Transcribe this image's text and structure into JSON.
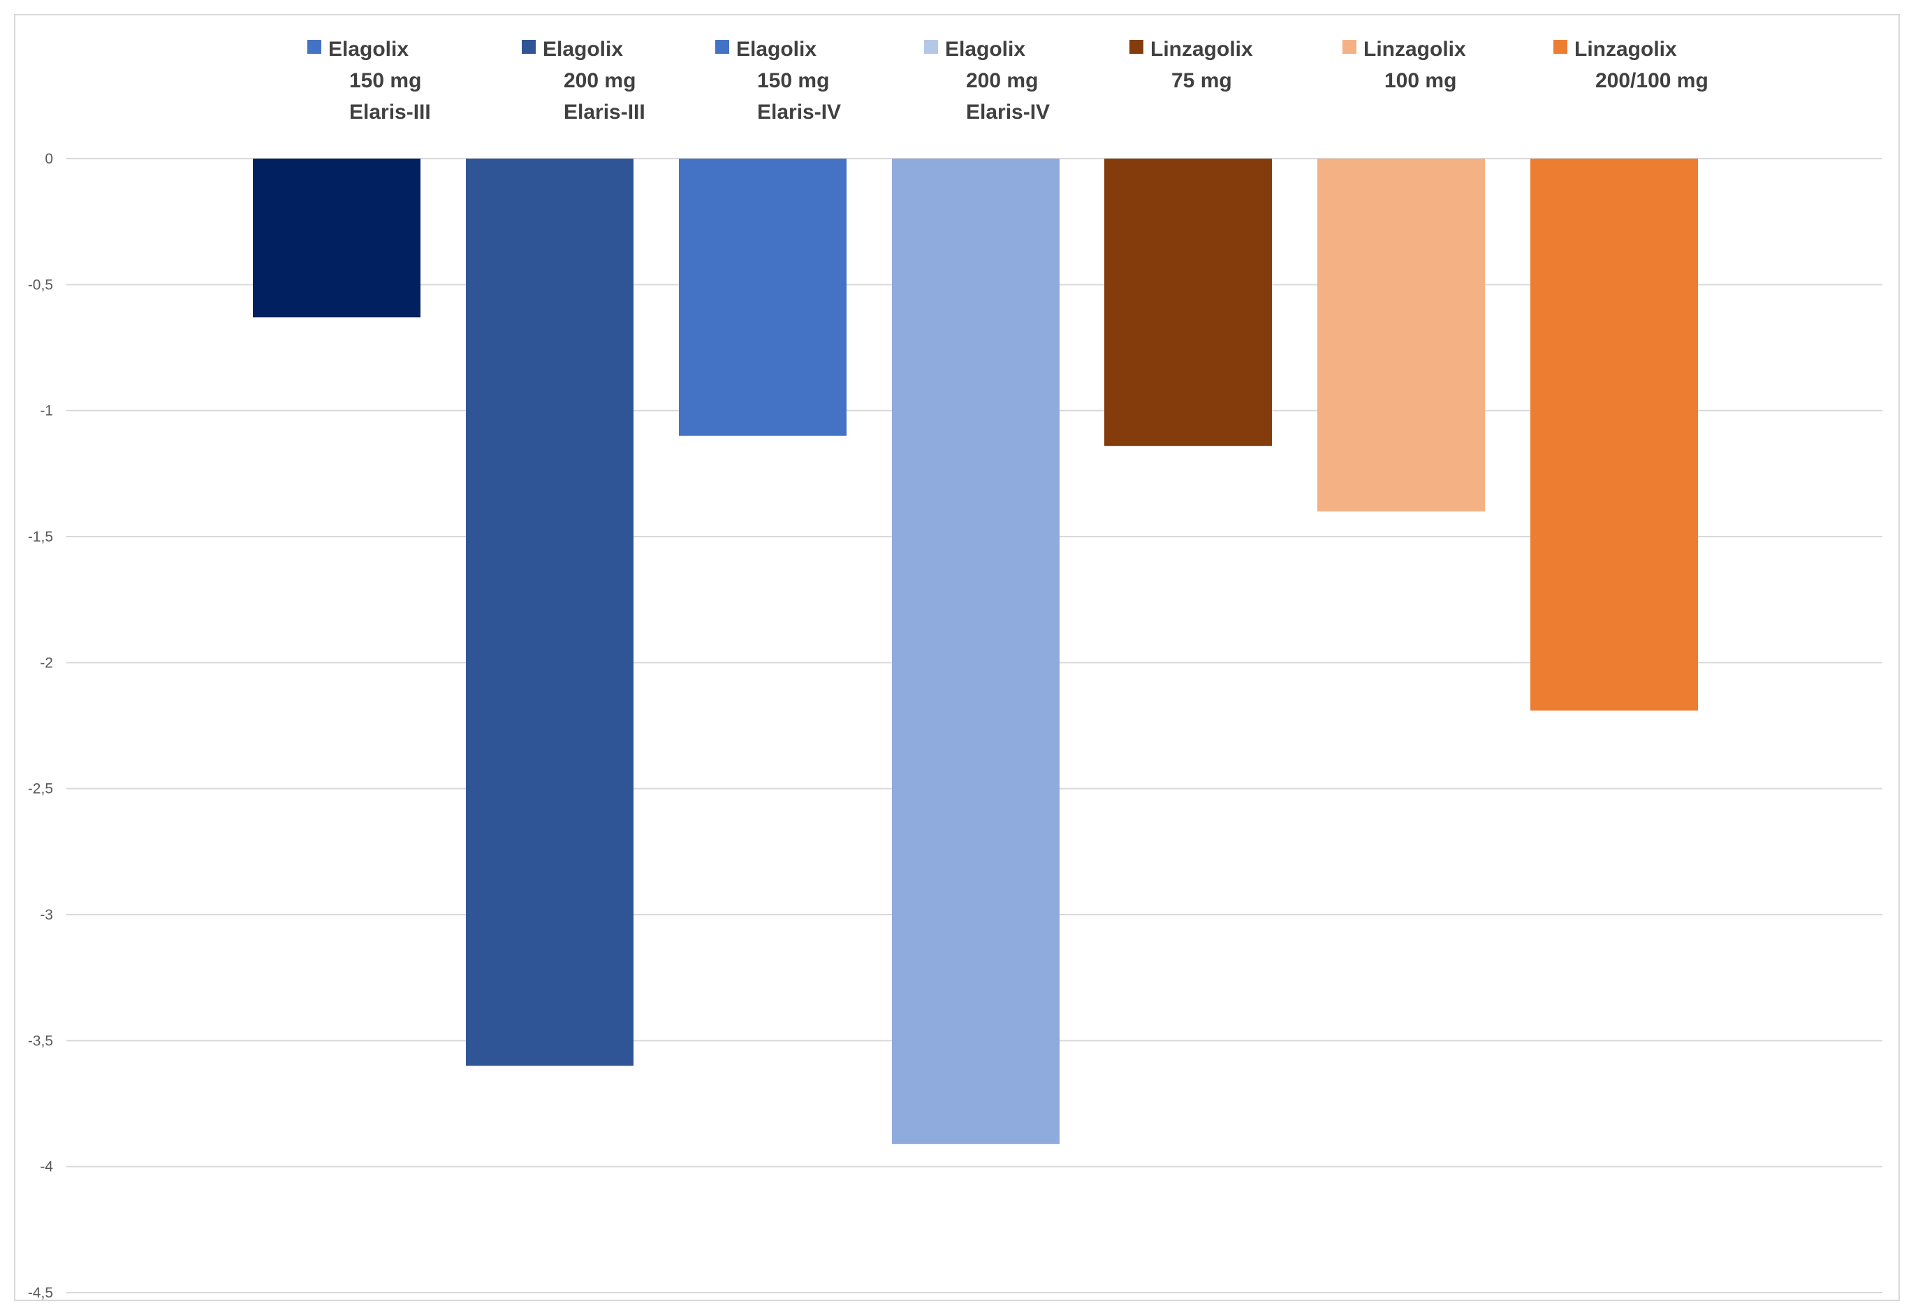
{
  "chart_data": {
    "type": "bar",
    "title": "",
    "xlabel": "",
    "ylabel": "",
    "ylim": [
      -4.5,
      0
    ],
    "yticks": [
      0,
      -0.5,
      -1,
      -1.5,
      -2,
      -2.5,
      -3,
      -3.5,
      -4,
      -4.5
    ],
    "ytick_labels": [
      "0",
      "-0,5",
      "-1",
      "-1,5",
      "-2",
      "-2,5",
      "-3",
      "-3,5",
      "-4",
      "-4,5"
    ],
    "grid": true,
    "legend_position": "top",
    "categories": [
      {
        "lines": [
          "Elagolix",
          "150 mg",
          "Elaris-III"
        ],
        "bar_color": "#002060",
        "legend_color": "#4472c4"
      },
      {
        "lines": [
          "Elagolix",
          "200 mg",
          "Elaris-III"
        ],
        "bar_color": "#2f5597",
        "legend_color": "#2f5597"
      },
      {
        "lines": [
          "Elagolix",
          "150 mg",
          "Elaris-IV"
        ],
        "bar_color": "#4472c4",
        "legend_color": "#4472c4"
      },
      {
        "lines": [
          "Elagolix",
          "200 mg",
          "Elaris-IV"
        ],
        "bar_color": "#8faadc",
        "legend_color": "#b4c7e7"
      },
      {
        "lines": [
          "Linzagolix",
          "75 mg"
        ],
        "bar_color": "#843c0c",
        "legend_color": "#843c0c"
      },
      {
        "lines": [
          "Linzagolix",
          "100 mg"
        ],
        "bar_color": "#f4b183",
        "legend_color": "#f4b183"
      },
      {
        "lines": [
          "Linzagolix",
          "200/100 mg"
        ],
        "bar_color": "#ed7d31",
        "legend_color": "#ed7d31"
      }
    ],
    "values": [
      -0.63,
      -3.6,
      -1.1,
      -3.91,
      -1.14,
      -1.4,
      -2.19
    ]
  }
}
